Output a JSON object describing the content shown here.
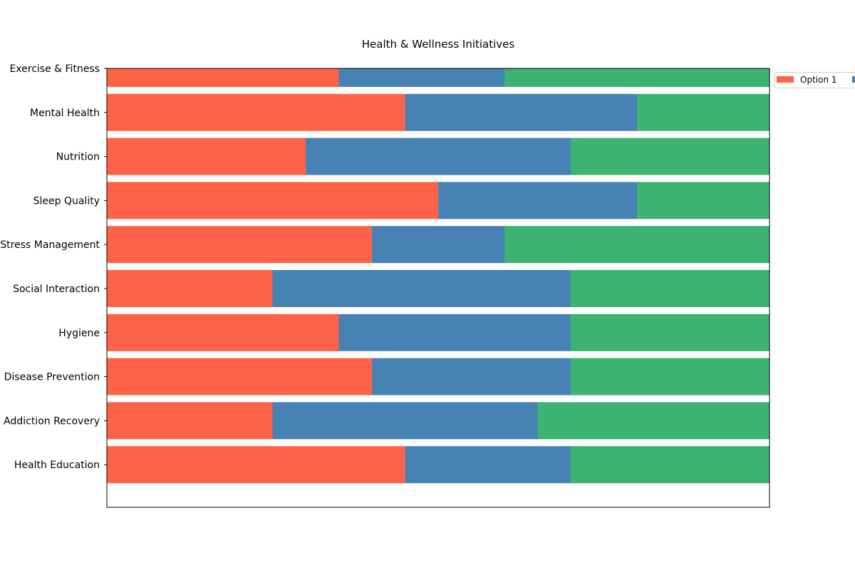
{
  "chart_data": {
    "type": "bar",
    "orientation": "horizontal",
    "stacked": true,
    "title": "Health & Wellness Initiatives",
    "xlabel": "",
    "ylabel": "",
    "categories": [
      "Exercise & Fitness",
      "Mental Health",
      "Nutrition",
      "Sleep Quality",
      "Stress Management",
      "Social Interaction",
      "Hygiene",
      "Disease Prevention",
      "Addiction Recovery",
      "Health Education"
    ],
    "xlim": [
      0,
      100
    ],
    "grid": false,
    "legend": {
      "placement": "top-right, outside plot area (clipped)"
    },
    "series": [
      {
        "name": "Option 1",
        "color": "#FF6347",
        "values": [
          35,
          45,
          30,
          50,
          40,
          25,
          35,
          40,
          25,
          45
        ]
      },
      {
        "color": "#4682B4",
        "values": [
          25,
          35,
          40,
          30,
          20,
          45,
          35,
          30,
          40,
          25
        ]
      },
      {
        "color": "#3CB371",
        "values": [
          40,
          20,
          30,
          20,
          40,
          30,
          30,
          30,
          35,
          30
        ]
      }
    ]
  }
}
